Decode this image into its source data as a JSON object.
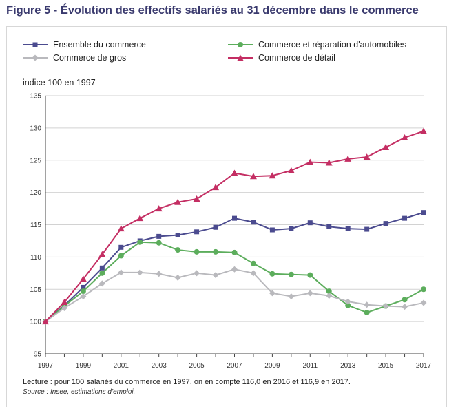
{
  "title": "Figure 5 - Évolution des effectifs salariés au 31 décembre dans le commerce",
  "note": "Lecture : pour 100 salariés du commerce en 1997, on en compte 116,0 en 2016 et 116,9 en 2017.",
  "source": "Source : Insee, estimations d’emploi.",
  "chart_data": {
    "type": "line",
    "ylabel": "indice 100 en 1997",
    "xlabel": "",
    "ylim": [
      95,
      135
    ],
    "yticks": [
      95,
      100,
      105,
      110,
      115,
      120,
      125,
      130,
      135
    ],
    "xticks": [
      1997,
      1999,
      2001,
      2003,
      2005,
      2007,
      2009,
      2011,
      2013,
      2015,
      2017
    ],
    "grid": "horizontal",
    "legend_position": "top",
    "x": [
      1997,
      1998,
      1999,
      2000,
      2001,
      2002,
      2003,
      2004,
      2005,
      2006,
      2007,
      2008,
      2009,
      2010,
      2011,
      2012,
      2013,
      2014,
      2015,
      2016,
      2017
    ],
    "series": [
      {
        "name": "Ensemble du commerce",
        "color": "#4b4b8f",
        "marker": "square",
        "values": [
          100,
          102.5,
          105.3,
          108.3,
          111.5,
          112.5,
          113.2,
          113.4,
          113.9,
          114.6,
          116.0,
          115.4,
          114.2,
          114.4,
          115.3,
          114.7,
          114.4,
          114.3,
          115.2,
          116.0,
          116.9
        ]
      },
      {
        "name": "Commerce et réparation d'automobiles",
        "color": "#5cad5c",
        "marker": "circle",
        "values": [
          100,
          102.4,
          104.7,
          107.5,
          110.2,
          112.3,
          112.2,
          111.1,
          110.8,
          110.8,
          110.7,
          109.0,
          107.4,
          107.3,
          107.2,
          104.7,
          102.5,
          101.4,
          102.4,
          103.4,
          105.0
        ]
      },
      {
        "name": "Commerce de gros",
        "color": "#b9b9bd",
        "marker": "diamond",
        "values": [
          100,
          102.1,
          103.9,
          105.9,
          107.6,
          107.6,
          107.4,
          106.8,
          107.5,
          107.2,
          108.1,
          107.5,
          104.4,
          103.9,
          104.4,
          104.0,
          103.1,
          102.6,
          102.4,
          102.3,
          102.9
        ]
      },
      {
        "name": "Commerce de détail",
        "color": "#c42e63",
        "marker": "triangle",
        "values": [
          100,
          103.0,
          106.6,
          110.4,
          114.4,
          116.0,
          117.5,
          118.5,
          119.0,
          120.8,
          123.0,
          122.5,
          122.6,
          123.4,
          124.7,
          124.6,
          125.2,
          125.5,
          127.0,
          128.5,
          129.5
        ]
      }
    ]
  }
}
